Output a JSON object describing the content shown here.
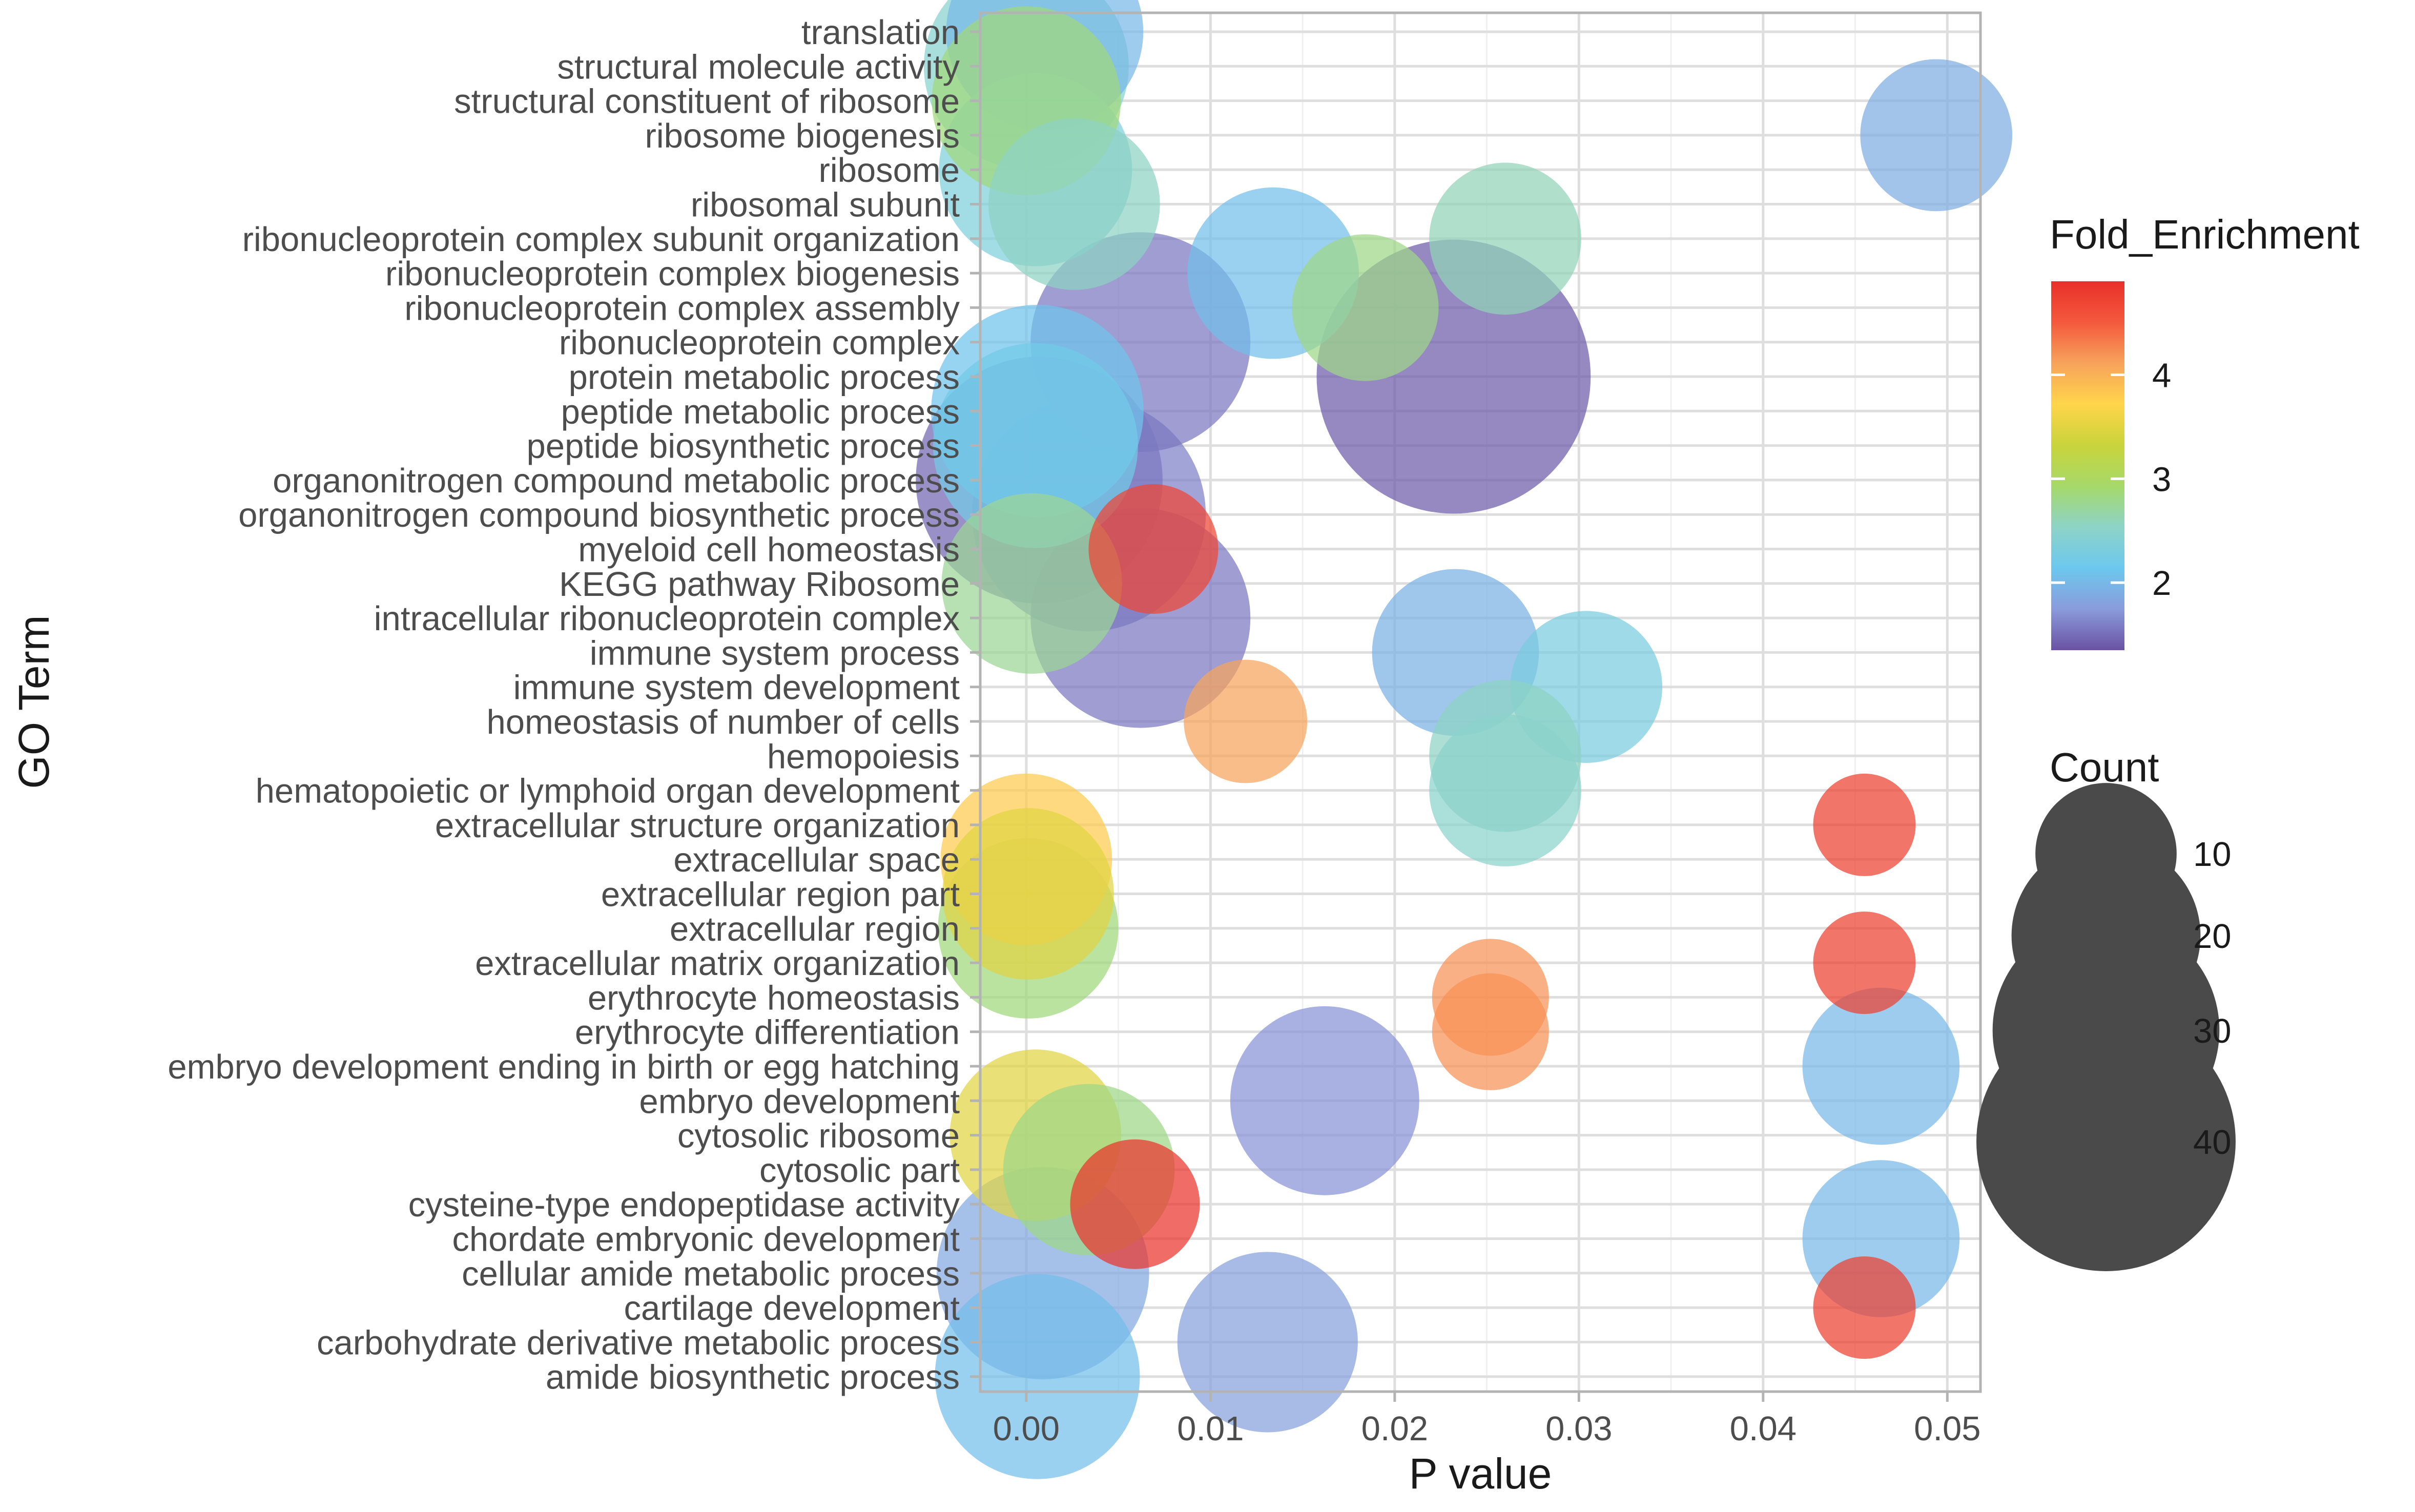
{
  "chart_data": {
    "type": "scatter",
    "title": "",
    "xlabel": "P value",
    "ylabel": "GO Term",
    "xlim": [
      -0.0025,
      0.0518
    ],
    "x_ticks": [
      0.0,
      0.01,
      0.02,
      0.03,
      0.04,
      0.05
    ],
    "x_tick_labels": [
      "0.00",
      "0.01",
      "0.02",
      "0.03",
      "0.04",
      "0.05"
    ],
    "grid": true,
    "legend_position": "right",
    "color_legend": {
      "title": "Fold_Enrichment",
      "min": 1.35,
      "max": 4.9,
      "ticks": [
        2,
        3,
        4
      ],
      "tick_labels": [
        "2",
        "3",
        "4"
      ],
      "colors": [
        "#6a52a3",
        "#8a9bdb",
        "#6cc8ee",
        "#8dd3c7",
        "#a6d96a",
        "#c9d43b",
        "#ffd54a",
        "#f7a35c",
        "#f4593d",
        "#e8302a"
      ]
    },
    "size_legend": {
      "title": "Count",
      "values": [
        10,
        20,
        30,
        40
      ],
      "labels": [
        "10",
        "20",
        "30",
        "40"
      ],
      "point_color": "#4a4a4a"
    },
    "points": [
      {
        "term": "translation",
        "p": 0.001,
        "fold": 2.0,
        "count": 22
      },
      {
        "term": "structural molecule activity",
        "p": 0.0,
        "fold": 2.45,
        "count": 24
      },
      {
        "term": "structural constituent of ribosome",
        "p": 0.0,
        "fold": 2.85,
        "count": 20
      },
      {
        "term": "ribosome biogenesis",
        "p": 0.0494,
        "fold": 1.9,
        "count": 12
      },
      {
        "term": "ribosome",
        "p": 0.0005,
        "fold": 2.35,
        "count": 21
      },
      {
        "term": "ribosomal subunit",
        "p": 0.0026,
        "fold": 2.55,
        "count": 16
      },
      {
        "term": "ribonucleoprotein complex subunit organization",
        "p": 0.026,
        "fold": 2.6,
        "count": 12
      },
      {
        "term": "ribonucleoprotein complex biogenesis",
        "p": 0.0134,
        "fold": 2.05,
        "count": 16
      },
      {
        "term": "ribonucleoprotein complex assembly",
        "p": 0.0184,
        "fold": 2.8,
        "count": 11
      },
      {
        "term": "ribonucleoprotein complex",
        "p": 0.0062,
        "fold": 1.55,
        "count": 28
      },
      {
        "term": "protein metabolic process",
        "p": 0.0232,
        "fold": 1.4,
        "count": 45
      },
      {
        "term": "peptide metabolic process",
        "p": 0.0006,
        "fold": 2.1,
        "count": 26
      },
      {
        "term": "peptide biosynthetic process",
        "p": 0.0005,
        "fold": 2.2,
        "count": 24
      },
      {
        "term": "organonitrogen compound metabolic process",
        "p": 0.0007,
        "fold": 1.45,
        "count": 36
      },
      {
        "term": "organonitrogen compound biosynthetic process",
        "p": 0.0034,
        "fold": 1.6,
        "count": 32
      },
      {
        "term": "myeloid cell homeostasis",
        "p": 0.0069,
        "fold": 4.7,
        "count": 8
      },
      {
        "term": "KEGG pathway Ribosome",
        "p": 0.0003,
        "fold": 2.75,
        "count": 18
      },
      {
        "term": "intracellular ribonucleoprotein complex",
        "p": 0.0062,
        "fold": 1.55,
        "count": 28
      },
      {
        "term": "immune system process",
        "p": 0.0233,
        "fold": 1.95,
        "count": 15
      },
      {
        "term": "immune system development",
        "p": 0.0304,
        "fold": 2.3,
        "count": 12
      },
      {
        "term": "homeostasis of number of cells",
        "p": 0.0119,
        "fold": 4.1,
        "count": 7
      },
      {
        "term": "hemopoiesis",
        "p": 0.026,
        "fold": 2.55,
        "count": 12
      },
      {
        "term": "hematopoietic or lymphoid organ development",
        "p": 0.026,
        "fold": 2.5,
        "count": 12
      },
      {
        "term": "extracellular structure organization",
        "p": 0.0455,
        "fold": 4.75,
        "count": 4
      },
      {
        "term": "extracellular space",
        "p": 0.0,
        "fold": 3.8,
        "count": 16
      },
      {
        "term": "extracellular region part",
        "p": 0.0001,
        "fold": 3.5,
        "count": 16
      },
      {
        "term": "extracellular region",
        "p": 0.0001,
        "fold": 2.85,
        "count": 18
      },
      {
        "term": "extracellular matrix organization",
        "p": 0.0455,
        "fold": 4.75,
        "count": 4
      },
      {
        "term": "erythrocyte homeostasis",
        "p": 0.0252,
        "fold": 4.2,
        "count": 6
      },
      {
        "term": "erythrocyte differentiation",
        "p": 0.0252,
        "fold": 4.2,
        "count": 6
      },
      {
        "term": "embryo development ending in birth or egg hatching",
        "p": 0.0464,
        "fold": 2.0,
        "count": 13
      },
      {
        "term": "embryo development",
        "p": 0.0162,
        "fold": 1.7,
        "count": 20
      },
      {
        "term": "cytosolic ribosome",
        "p": 0.0005,
        "fold": 3.5,
        "count": 16
      },
      {
        "term": "cytosolic part",
        "p": 0.0034,
        "fold": 2.8,
        "count": 16
      },
      {
        "term": "cysteine-type endopeptidase activity",
        "p": 0.0059,
        "fold": 4.85,
        "count": 8
      },
      {
        "term": "chordate embryonic development",
        "p": 0.0464,
        "fold": 2.0,
        "count": 13
      },
      {
        "term": "cellular amide metabolic process",
        "p": 0.0009,
        "fold": 1.85,
        "count": 26
      },
      {
        "term": "cartilage development",
        "p": 0.0455,
        "fold": 4.75,
        "count": 4
      },
      {
        "term": "carbohydrate derivative metabolic process",
        "p": 0.0131,
        "fold": 1.8,
        "count": 18
      },
      {
        "term": "amide biosynthetic process",
        "p": 0.0006,
        "fold": 2.05,
        "count": 24
      }
    ]
  }
}
